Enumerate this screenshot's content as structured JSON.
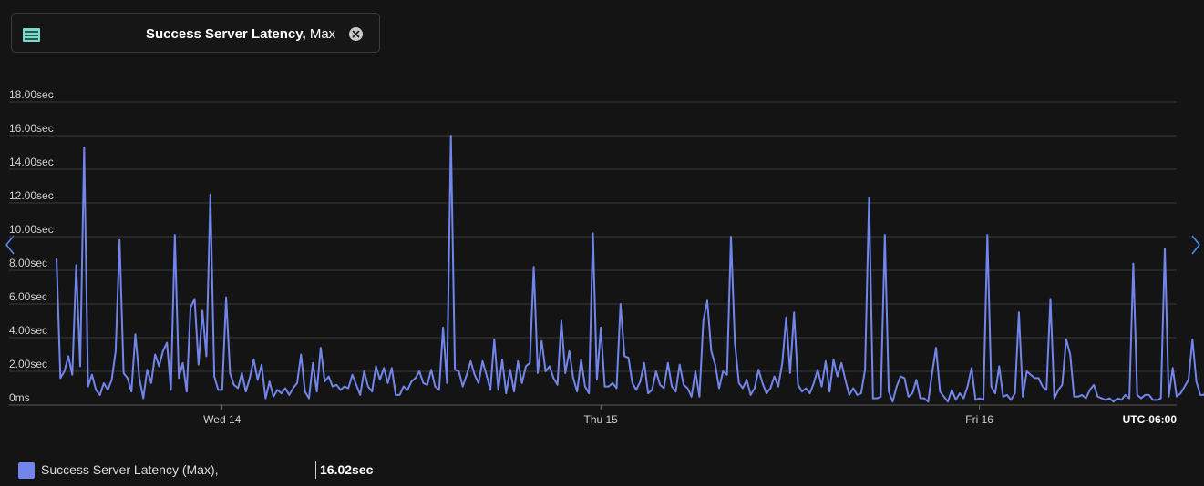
{
  "metric_pill": {
    "title_bold": "Success Server Latency,",
    "title_suffix": " Max",
    "icon": "metric-icon",
    "close_icon": "close-icon"
  },
  "navigation": {
    "left_icon": "chevron-left-icon",
    "right_icon": "chevron-right-icon"
  },
  "legend": {
    "label": "Success Server Latency (Max),",
    "value": "16.02sec",
    "color": "#7185ea"
  },
  "chart_data": {
    "type": "line",
    "title": "",
    "xlabel": "",
    "ylabel": "",
    "timezone_label": "UTC-06:00",
    "ylim": [
      0,
      18
    ],
    "y_ticks": [
      0,
      2,
      4,
      6,
      8,
      10,
      12,
      14,
      16,
      18
    ],
    "y_tick_labels": [
      "0ms",
      "2.00sec",
      "4.00sec",
      "6.00sec",
      "8.00sec",
      "10.00sec",
      "12.00sec",
      "14.00sec",
      "16.00sec",
      "18.00sec"
    ],
    "x_ticks": [
      {
        "label": "Wed 14",
        "hours": 24
      },
      {
        "label": "Thu 15",
        "hours": 48
      },
      {
        "label": "Fri 16",
        "hours": 72
      }
    ],
    "grid": true,
    "legend_position": "bottom-left",
    "colors": {
      "series": "#7185ea",
      "grid": "#3a3a3a",
      "text": "#d0d0d0"
    },
    "series": [
      {
        "name": "Success Server Latency (Max)",
        "x_start_hours": 13.5,
        "step_hours": 0.25,
        "values": [
          8.7,
          1.6,
          2.0,
          2.9,
          1.8,
          8.3,
          2.3,
          15.3,
          1.1,
          1.8,
          0.9,
          0.6,
          1.3,
          0.9,
          1.5,
          3.2,
          9.8,
          1.9,
          1.6,
          0.8,
          4.2,
          1.6,
          0.4,
          2.1,
          1.3,
          3.0,
          2.3,
          3.2,
          3.7,
          0.9,
          10.1,
          1.6,
          2.5,
          0.8,
          5.8,
          6.3,
          2.4,
          5.6,
          2.9,
          12.5,
          1.7,
          0.9,
          0.9,
          6.4,
          1.9,
          1.2,
          1.0,
          1.9,
          0.8,
          1.6,
          2.7,
          1.5,
          2.4,
          0.4,
          1.4,
          0.5,
          0.9,
          0.7,
          1.0,
          0.6,
          1.0,
          1.3,
          3.0,
          0.8,
          0.4,
          2.5,
          0.8,
          3.4,
          1.4,
          1.7,
          1.1,
          1.2,
          0.9,
          1.1,
          1.0,
          1.8,
          1.2,
          0.6,
          2.0,
          1.1,
          0.8,
          2.3,
          1.5,
          2.2,
          1.3,
          2.2,
          0.6,
          0.6,
          1.1,
          0.9,
          1.4,
          1.6,
          2.0,
          1.3,
          1.2,
          2.1,
          1.1,
          0.9,
          4.6,
          1.3,
          16.0,
          2.1,
          2.0,
          1.1,
          1.8,
          2.6,
          1.8,
          1.3,
          2.6,
          1.8,
          0.9,
          3.9,
          0.9,
          2.7,
          0.7,
          2.1,
          0.8,
          2.6,
          1.3,
          2.3,
          2.5,
          8.2,
          1.9,
          3.8,
          2.0,
          2.3,
          1.6,
          1.2,
          5.0,
          1.9,
          3.2,
          1.6,
          0.8,
          2.7,
          1.1,
          0.7,
          10.2,
          1.5,
          4.6,
          1.1,
          1.1,
          1.3,
          1.0,
          6.0,
          2.9,
          2.8,
          1.3,
          0.9,
          1.4,
          2.5,
          0.7,
          0.9,
          2.0,
          1.2,
          1.0,
          2.5,
          1.1,
          0.8,
          2.4,
          1.2,
          1.0,
          0.5,
          2.0,
          0.5,
          5.0,
          6.2,
          3.2,
          2.4,
          1.0,
          2.0,
          1.8,
          10.0,
          3.7,
          1.3,
          1.0,
          1.5,
          0.6,
          1.0,
          2.1,
          1.3,
          0.7,
          1.0,
          1.7,
          1.1,
          2.5,
          5.2,
          1.9,
          5.5,
          1.2,
          0.8,
          1.0,
          0.7,
          1.3,
          2.1,
          1.1,
          2.6,
          0.8,
          2.7,
          1.7,
          2.5,
          1.5,
          0.6,
          1.0,
          0.6,
          0.7,
          2.1,
          12.3,
          0.4,
          0.4,
          0.5,
          10.1,
          0.8,
          0.2,
          1.1,
          1.7,
          1.6,
          0.5,
          0.7,
          1.5,
          0.4,
          0.4,
          0.2,
          1.9,
          3.4,
          0.8,
          0.5,
          0.2,
          0.9,
          0.3,
          0.7,
          0.4,
          1.1,
          2.2,
          0.3,
          0.4,
          0.3,
          10.1,
          1.1,
          0.7,
          2.3,
          0.5,
          0.6,
          0.3,
          0.7,
          5.5,
          0.5,
          2.0,
          1.8,
          1.6,
          1.6,
          1.1,
          0.9,
          6.3,
          0.4,
          0.9,
          1.2,
          3.9,
          3.0,
          0.5,
          0.5,
          0.6,
          0.4,
          0.9,
          1.2,
          0.5,
          0.4,
          0.3,
          0.4,
          0.2,
          0.4,
          0.3,
          0.6,
          0.4,
          8.4,
          0.6,
          0.4,
          0.6,
          0.6,
          0.3,
          0.3,
          0.4,
          9.3,
          0.5,
          2.2,
          0.5,
          0.7,
          1.1,
          1.5,
          3.9,
          1.4,
          0.6,
          0.6,
          1.7,
          0.7,
          0.5,
          0.4,
          1.3,
          0.5,
          0.4,
          0.5,
          0.8,
          0.6
        ]
      }
    ]
  }
}
